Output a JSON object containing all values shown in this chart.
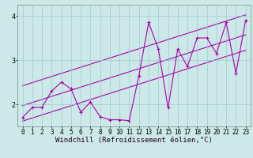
{
  "title": "",
  "xlabel": "Windchill (Refroidissement éolien,°C)",
  "ylabel": "",
  "bg_color": "#cce8e8",
  "line_color": "#aa00aa",
  "grid_color": "#99cccc",
  "xlim": [
    -0.5,
    23.5
  ],
  "ylim": [
    1.5,
    4.25
  ],
  "yticks": [
    2,
    3,
    4
  ],
  "ytick_labels": [
    "2",
    "3",
    "4"
  ],
  "xticks": [
    0,
    1,
    2,
    3,
    4,
    5,
    6,
    7,
    8,
    9,
    10,
    11,
    12,
    13,
    14,
    15,
    16,
    17,
    18,
    19,
    20,
    21,
    22,
    23
  ],
  "x_data": [
    0,
    1,
    2,
    3,
    4,
    5,
    6,
    7,
    8,
    9,
    10,
    11,
    12,
    13,
    14,
    15,
    16,
    17,
    18,
    19,
    20,
    21,
    22,
    23
  ],
  "y_data": [
    1.7,
    1.93,
    1.93,
    2.3,
    2.5,
    2.35,
    1.82,
    2.05,
    1.72,
    1.65,
    1.65,
    1.63,
    2.65,
    3.85,
    3.25,
    1.92,
    3.25,
    2.85,
    3.5,
    3.5,
    3.15,
    3.85,
    2.7,
    3.9
  ],
  "reg_line_x": [
    0,
    23
  ],
  "reg_line_y": [
    1.97,
    3.57
  ],
  "upper_line_x": [
    0,
    23
  ],
  "upper_line_y": [
    2.42,
    4.02
  ],
  "lower_line_x": [
    0,
    23
  ],
  "lower_line_y": [
    1.62,
    3.22
  ],
  "tick_fontsize": 5.5,
  "label_fontsize": 6.5,
  "figsize": [
    3.2,
    2.0
  ],
  "dpi": 100
}
